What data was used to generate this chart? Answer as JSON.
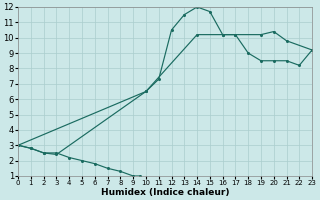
{
  "xlabel": "Humidex (Indice chaleur)",
  "xlim": [
    0,
    23
  ],
  "ylim": [
    1,
    12
  ],
  "xticks": [
    0,
    1,
    2,
    3,
    4,
    5,
    6,
    7,
    8,
    9,
    10,
    11,
    12,
    13,
    14,
    15,
    16,
    17,
    18,
    19,
    20,
    21,
    22,
    23
  ],
  "yticks": [
    1,
    2,
    3,
    4,
    5,
    6,
    7,
    8,
    9,
    10,
    11,
    12
  ],
  "background_color": "#cce8e8",
  "grid_color": "#aacece",
  "line_color": "#1a6b60",
  "curve1_x": [
    0,
    1,
    2,
    3,
    4,
    5,
    6,
    7,
    8,
    9,
    9.5
  ],
  "curve1_y": [
    3.0,
    2.8,
    2.5,
    2.5,
    2.2,
    2.0,
    1.8,
    1.5,
    1.3,
    1.0,
    1.0
  ],
  "curve2_x": [
    0,
    1,
    2,
    3,
    10,
    11,
    12,
    13,
    14,
    15,
    16,
    17,
    19,
    20,
    21,
    23
  ],
  "curve2_y": [
    3.0,
    2.8,
    2.5,
    2.4,
    6.5,
    7.3,
    10.5,
    11.5,
    12.0,
    11.7,
    10.2,
    10.2,
    10.2,
    10.4,
    9.8,
    9.2
  ],
  "curve3_x": [
    0,
    10,
    14,
    16,
    17,
    18,
    19,
    20,
    21,
    22,
    23
  ],
  "curve3_y": [
    3.0,
    6.5,
    10.2,
    10.2,
    10.2,
    9.0,
    8.5,
    8.5,
    8.5,
    8.2,
    9.2
  ],
  "figsize": [
    3.2,
    2.0
  ],
  "dpi": 100,
  "fontsize_label": 6.5,
  "fontsize_tick_x": 5.0,
  "fontsize_tick_y": 6.0,
  "lw": 0.85,
  "ms": 2.2
}
